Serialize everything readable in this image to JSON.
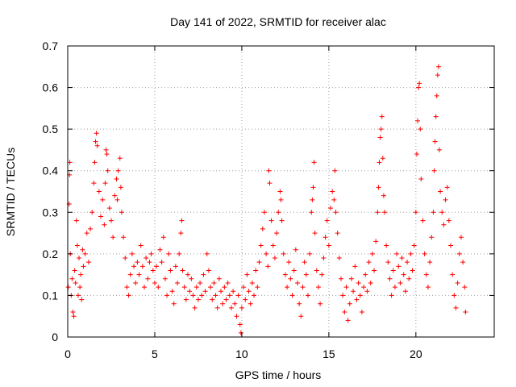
{
  "chart_data": {
    "type": "scatter",
    "title": "Day 141 of 2022, SRMTID for receiver alac",
    "xlabel": "GPS time / hours",
    "ylabel": "SRMTID / TECUs",
    "xlim": [
      0,
      24.5
    ],
    "ylim": [
      0,
      0.7
    ],
    "xticks": [
      0,
      5,
      10,
      15,
      20
    ],
    "xtick_labels": [
      "0",
      "5",
      "10",
      "15",
      "20"
    ],
    "yticks": [
      0,
      0.1,
      0.2,
      0.3,
      0.4,
      0.5,
      0.6,
      0.7
    ],
    "ytick_labels": [
      "0",
      "0.1",
      "0.2",
      "0.3",
      "0.4",
      "0.5",
      "0.6",
      "0.7"
    ],
    "grid": true,
    "marker": "+",
    "color": "#ff0000",
    "series": [
      {
        "name": "SRMTID",
        "points": [
          [
            0.03,
            0.12
          ],
          [
            0.08,
            0.32
          ],
          [
            0.1,
            0.39
          ],
          [
            0.12,
            0.42
          ],
          [
            0.15,
            0.2
          ],
          [
            0.2,
            0.1
          ],
          [
            0.25,
            0.14
          ],
          [
            0.3,
            0.06
          ],
          [
            0.35,
            0.05
          ],
          [
            0.4,
            0.16
          ],
          [
            0.45,
            0.13
          ],
          [
            0.5,
            0.28
          ],
          [
            0.55,
            0.22
          ],
          [
            0.6,
            0.1
          ],
          [
            0.65,
            0.19
          ],
          [
            0.7,
            0.12
          ],
          [
            0.75,
            0.15
          ],
          [
            0.8,
            0.09
          ],
          [
            0.85,
            0.21
          ],
          [
            0.9,
            0.17
          ],
          [
            1.0,
            0.2
          ],
          [
            1.1,
            0.25
          ],
          [
            1.2,
            0.18
          ],
          [
            1.3,
            0.26
          ],
          [
            1.4,
            0.3
          ],
          [
            1.5,
            0.37
          ],
          [
            1.55,
            0.42
          ],
          [
            1.6,
            0.47
          ],
          [
            1.65,
            0.49
          ],
          [
            1.7,
            0.46
          ],
          [
            1.8,
            0.35
          ],
          [
            1.9,
            0.29
          ],
          [
            2.0,
            0.33
          ],
          [
            2.1,
            0.27
          ],
          [
            2.15,
            0.37
          ],
          [
            2.2,
            0.45
          ],
          [
            2.25,
            0.44
          ],
          [
            2.3,
            0.4
          ],
          [
            2.4,
            0.31
          ],
          [
            2.5,
            0.28
          ],
          [
            2.6,
            0.24
          ],
          [
            2.7,
            0.34
          ],
          [
            2.8,
            0.38
          ],
          [
            2.85,
            0.33
          ],
          [
            2.9,
            0.4
          ],
          [
            3.0,
            0.43
          ],
          [
            3.05,
            0.36
          ],
          [
            3.1,
            0.3
          ],
          [
            3.2,
            0.24
          ],
          [
            3.3,
            0.19
          ],
          [
            3.4,
            0.12
          ],
          [
            3.5,
            0.1
          ],
          [
            3.6,
            0.15
          ],
          [
            3.7,
            0.2
          ],
          [
            3.8,
            0.17
          ],
          [
            3.9,
            0.13
          ],
          [
            4.0,
            0.18
          ],
          [
            4.1,
            0.15
          ],
          [
            4.2,
            0.22
          ],
          [
            4.3,
            0.17
          ],
          [
            4.4,
            0.12
          ],
          [
            4.5,
            0.19
          ],
          [
            4.6,
            0.14
          ],
          [
            4.7,
            0.18
          ],
          [
            4.8,
            0.2
          ],
          [
            4.9,
            0.16
          ],
          [
            5.0,
            0.13
          ],
          [
            5.1,
            0.17
          ],
          [
            5.2,
            0.12
          ],
          [
            5.3,
            0.21
          ],
          [
            5.4,
            0.18
          ],
          [
            5.5,
            0.24
          ],
          [
            5.6,
            0.14
          ],
          [
            5.7,
            0.1
          ],
          [
            5.8,
            0.2
          ],
          [
            5.9,
            0.16
          ],
          [
            6.0,
            0.11
          ],
          [
            6.1,
            0.08
          ],
          [
            6.2,
            0.17
          ],
          [
            6.3,
            0.13
          ],
          [
            6.4,
            0.2
          ],
          [
            6.5,
            0.25
          ],
          [
            6.55,
            0.28
          ],
          [
            6.6,
            0.16
          ],
          [
            6.7,
            0.12
          ],
          [
            6.8,
            0.09
          ],
          [
            6.9,
            0.15
          ],
          [
            7.0,
            0.11
          ],
          [
            7.1,
            0.14
          ],
          [
            7.2,
            0.1
          ],
          [
            7.3,
            0.07
          ],
          [
            7.4,
            0.12
          ],
          [
            7.5,
            0.09
          ],
          [
            7.6,
            0.13
          ],
          [
            7.7,
            0.1
          ],
          [
            7.8,
            0.15
          ],
          [
            7.9,
            0.11
          ],
          [
            8.0,
            0.2
          ],
          [
            8.1,
            0.16
          ],
          [
            8.2,
            0.12
          ],
          [
            8.3,
            0.09
          ],
          [
            8.4,
            0.13
          ],
          [
            8.5,
            0.1
          ],
          [
            8.6,
            0.07
          ],
          [
            8.7,
            0.14
          ],
          [
            8.8,
            0.11
          ],
          [
            8.9,
            0.08
          ],
          [
            9.0,
            0.12
          ],
          [
            9.1,
            0.09
          ],
          [
            9.2,
            0.13
          ],
          [
            9.3,
            0.1
          ],
          [
            9.4,
            0.07
          ],
          [
            9.5,
            0.11
          ],
          [
            9.6,
            0.08
          ],
          [
            9.7,
            0.05
          ],
          [
            9.8,
            0.1
          ],
          [
            9.9,
            0.03
          ],
          [
            9.95,
            0.01
          ],
          [
            10.0,
            0.07
          ],
          [
            10.1,
            0.12
          ],
          [
            10.2,
            0.09
          ],
          [
            10.3,
            0.15
          ],
          [
            10.4,
            0.11
          ],
          [
            10.5,
            0.08
          ],
          [
            10.6,
            0.13
          ],
          [
            10.7,
            0.1
          ],
          [
            10.8,
            0.16
          ],
          [
            10.9,
            0.12
          ],
          [
            11.0,
            0.18
          ],
          [
            11.1,
            0.22
          ],
          [
            11.2,
            0.26
          ],
          [
            11.3,
            0.3
          ],
          [
            11.4,
            0.2
          ],
          [
            11.5,
            0.17
          ],
          [
            11.55,
            0.4
          ],
          [
            11.6,
            0.37
          ],
          [
            11.7,
            0.28
          ],
          [
            11.8,
            0.22
          ],
          [
            11.9,
            0.19
          ],
          [
            12.0,
            0.25
          ],
          [
            12.1,
            0.3
          ],
          [
            12.2,
            0.35
          ],
          [
            12.25,
            0.33
          ],
          [
            12.3,
            0.28
          ],
          [
            12.4,
            0.2
          ],
          [
            12.5,
            0.15
          ],
          [
            12.6,
            0.12
          ],
          [
            12.7,
            0.18
          ],
          [
            12.8,
            0.14
          ],
          [
            12.9,
            0.1
          ],
          [
            13.0,
            0.16
          ],
          [
            13.1,
            0.21
          ],
          [
            13.2,
            0.13
          ],
          [
            13.3,
            0.08
          ],
          [
            13.4,
            0.05
          ],
          [
            13.5,
            0.12
          ],
          [
            13.6,
            0.18
          ],
          [
            13.7,
            0.15
          ],
          [
            13.8,
            0.1
          ],
          [
            13.9,
            0.2
          ],
          [
            14.0,
            0.3
          ],
          [
            14.05,
            0.33
          ],
          [
            14.1,
            0.36
          ],
          [
            14.15,
            0.42
          ],
          [
            14.2,
            0.25
          ],
          [
            14.3,
            0.16
          ],
          [
            14.4,
            0.12
          ],
          [
            14.5,
            0.08
          ],
          [
            14.6,
            0.15
          ],
          [
            14.7,
            0.19
          ],
          [
            14.8,
            0.24
          ],
          [
            14.9,
            0.28
          ],
          [
            15.0,
            0.22
          ],
          [
            15.1,
            0.31
          ],
          [
            15.2,
            0.35
          ],
          [
            15.3,
            0.33
          ],
          [
            15.35,
            0.4
          ],
          [
            15.4,
            0.3
          ],
          [
            15.5,
            0.25
          ],
          [
            15.6,
            0.19
          ],
          [
            15.7,
            0.14
          ],
          [
            15.8,
            0.1
          ],
          [
            15.9,
            0.06
          ],
          [
            16.0,
            0.12
          ],
          [
            16.1,
            0.04
          ],
          [
            16.2,
            0.08
          ],
          [
            16.3,
            0.14
          ],
          [
            16.4,
            0.11
          ],
          [
            16.5,
            0.17
          ],
          [
            16.6,
            0.09
          ],
          [
            16.7,
            0.13
          ],
          [
            16.8,
            0.1
          ],
          [
            16.9,
            0.06
          ],
          [
            17.0,
            0.12
          ],
          [
            17.1,
            0.15
          ],
          [
            17.2,
            0.11
          ],
          [
            17.3,
            0.18
          ],
          [
            17.4,
            0.13
          ],
          [
            17.5,
            0.2
          ],
          [
            17.6,
            0.16
          ],
          [
            17.7,
            0.23
          ],
          [
            17.8,
            0.3
          ],
          [
            17.85,
            0.36
          ],
          [
            17.9,
            0.42
          ],
          [
            17.95,
            0.48
          ],
          [
            18.0,
            0.5
          ],
          [
            18.05,
            0.53
          ],
          [
            18.1,
            0.43
          ],
          [
            18.15,
            0.34
          ],
          [
            18.2,
            0.3
          ],
          [
            18.3,
            0.22
          ],
          [
            18.4,
            0.18
          ],
          [
            18.5,
            0.14
          ],
          [
            18.6,
            0.1
          ],
          [
            18.7,
            0.16
          ],
          [
            18.8,
            0.12
          ],
          [
            18.9,
            0.2
          ],
          [
            19.0,
            0.17
          ],
          [
            19.1,
            0.13
          ],
          [
            19.2,
            0.19
          ],
          [
            19.3,
            0.15
          ],
          [
            19.4,
            0.11
          ],
          [
            19.5,
            0.18
          ],
          [
            19.6,
            0.14
          ],
          [
            19.7,
            0.2
          ],
          [
            19.8,
            0.16
          ],
          [
            19.9,
            0.22
          ],
          [
            20.0,
            0.3
          ],
          [
            20.05,
            0.44
          ],
          [
            20.1,
            0.52
          ],
          [
            20.15,
            0.6
          ],
          [
            20.2,
            0.61
          ],
          [
            20.25,
            0.5
          ],
          [
            20.3,
            0.38
          ],
          [
            20.4,
            0.28
          ],
          [
            20.5,
            0.2
          ],
          [
            20.6,
            0.15
          ],
          [
            20.7,
            0.12
          ],
          [
            20.8,
            0.18
          ],
          [
            20.9,
            0.24
          ],
          [
            21.0,
            0.3
          ],
          [
            21.05,
            0.4
          ],
          [
            21.1,
            0.47
          ],
          [
            21.15,
            0.53
          ],
          [
            21.2,
            0.58
          ],
          [
            21.25,
            0.63
          ],
          [
            21.3,
            0.65
          ],
          [
            21.35,
            0.45
          ],
          [
            21.4,
            0.35
          ],
          [
            21.5,
            0.3
          ],
          [
            21.6,
            0.27
          ],
          [
            21.7,
            0.33
          ],
          [
            21.8,
            0.36
          ],
          [
            21.9,
            0.28
          ],
          [
            22.0,
            0.22
          ],
          [
            22.1,
            0.15
          ],
          [
            22.2,
            0.1
          ],
          [
            22.3,
            0.07
          ],
          [
            22.4,
            0.13
          ],
          [
            22.5,
            0.2
          ],
          [
            22.6,
            0.24
          ],
          [
            22.7,
            0.18
          ],
          [
            22.8,
            0.12
          ],
          [
            22.85,
            0.06
          ]
        ]
      }
    ]
  }
}
